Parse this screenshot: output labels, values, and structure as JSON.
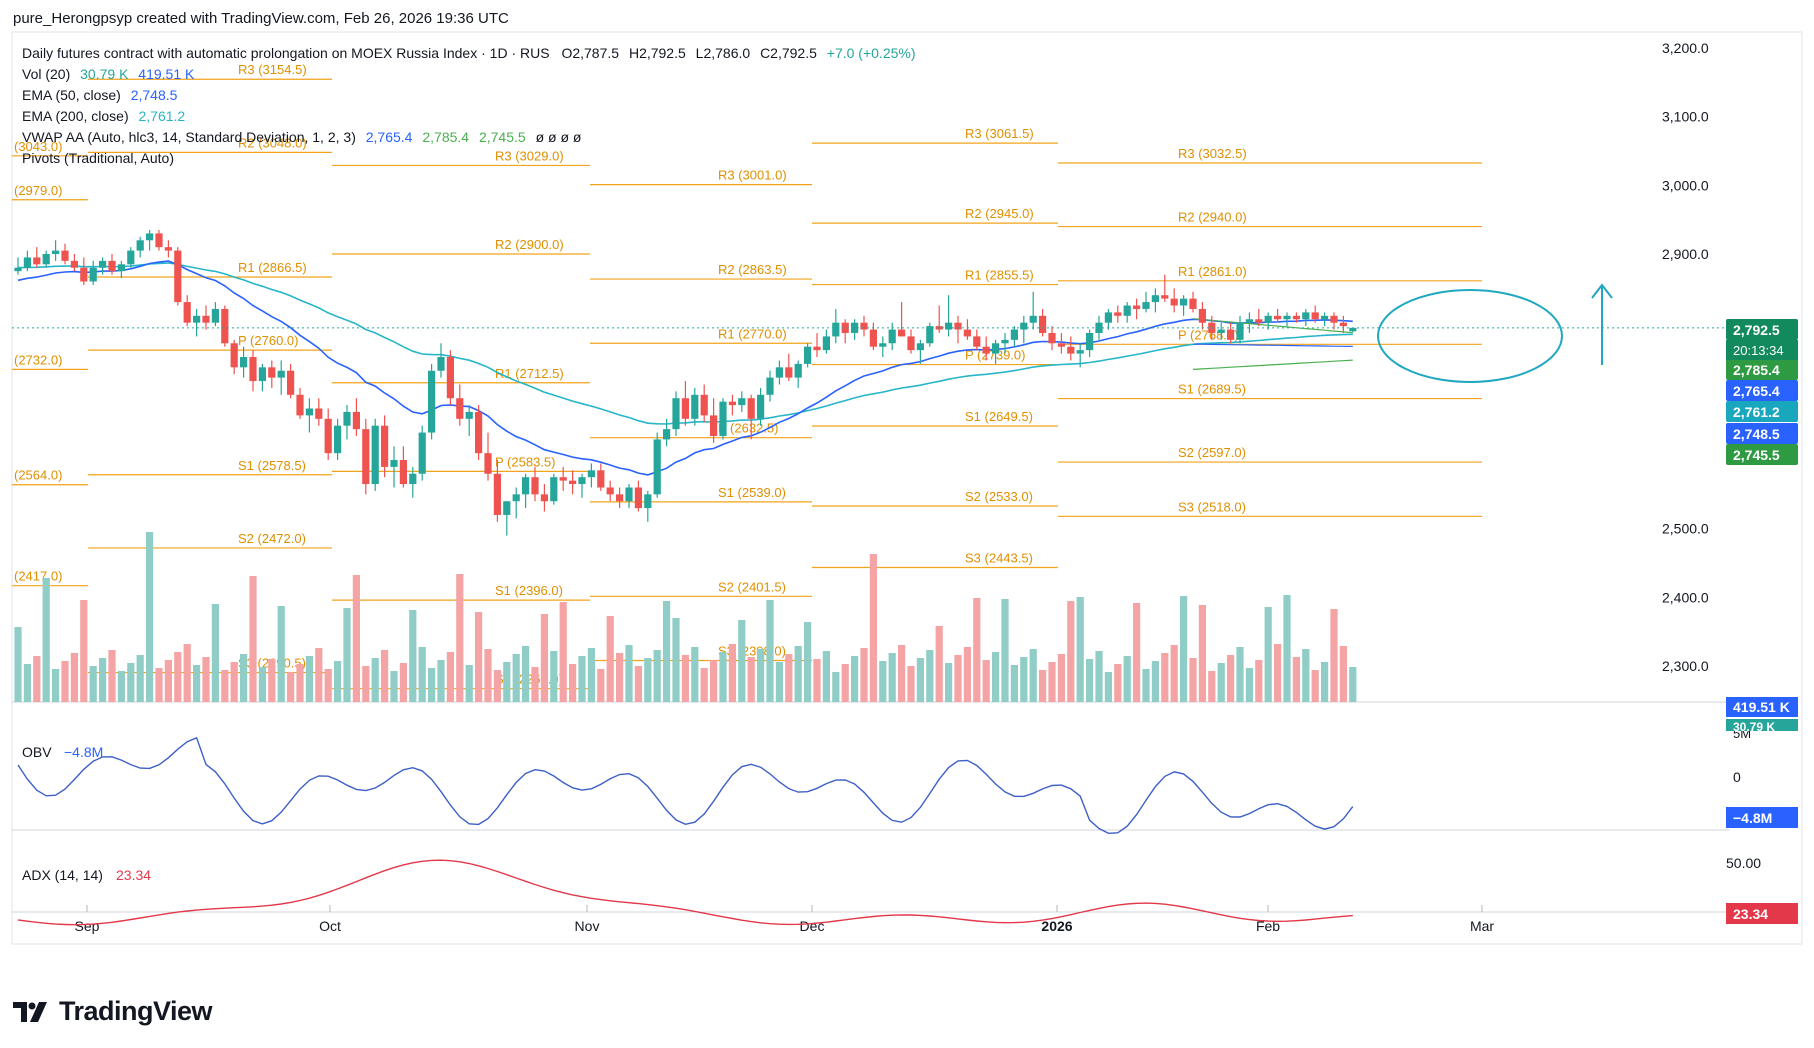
{
  "header": "pure_Herongpsyp created with TradingView.com, Feb 26, 2026 19:36 UTC",
  "brand": "TradingView",
  "legend": {
    "title": "Daily futures contract with automatic prolongation on MOEX Russia Index · 1D · RUS",
    "o": "O2,787.5",
    "h": "H2,792.5",
    "l": "L2,786.0",
    "c": "C2,792.5",
    "chg": "+7.0 (+0.25%)",
    "vol_label": "Vol (20)",
    "vol_v1": "30.79 K",
    "vol_v2": "419.51 K",
    "ema50_label": "EMA (50, close)",
    "ema50_v": "2,748.5",
    "ema200_label": "EMA (200, close)",
    "ema200_v": "2,761.2",
    "vwap_label": "VWAP AA (Auto, hlc3, 14, Standard Deviation, 1, 2, 3)",
    "vwap_v1": "2,765.4",
    "vwap_v2": "2,785.4",
    "vwap_v3": "2,745.5",
    "vwap_rest": "ø ø ø ø",
    "pivots_label": "Pivots (Traditional, Auto)"
  },
  "colors": {
    "up": "#26a69a",
    "down": "#ef5350",
    "vol_up": "#8fcdc6",
    "vol_down": "#f4a4a4",
    "ema50": "#2962ff",
    "ema200": "#27b6c8",
    "vwap": "#4caf50",
    "pivot": "#f2a31a",
    "obv": "#3d5fc7",
    "adx": "#e2384a",
    "annotation": "#1fa8c0"
  },
  "chart_data": {
    "type": "candlestick",
    "title": "Daily futures contract with automatic prolongation on MOEX Russia Index · 1D · RUS",
    "price_ticks": [
      "3,200.0",
      "3,100.0",
      "3,000.0",
      "2,900.0",
      "2,500.0",
      "2,400.0",
      "2,300.0"
    ],
    "x_ticks": [
      "Sep",
      "Oct",
      "Nov",
      "Dec",
      "2026",
      "Feb",
      "Mar"
    ],
    "last_price": "2,792.5",
    "countdown": "20:13:34",
    "candles": [
      [
        2875,
        2895,
        2870,
        2880
      ],
      [
        2880,
        2905,
        2875,
        2895
      ],
      [
        2895,
        2910,
        2880,
        2885
      ],
      [
        2885,
        2905,
        2880,
        2900
      ],
      [
        2900,
        2920,
        2890,
        2905
      ],
      [
        2905,
        2915,
        2885,
        2890
      ],
      [
        2890,
        2900,
        2875,
        2880
      ],
      [
        2880,
        2895,
        2855,
        2860
      ],
      [
        2860,
        2890,
        2855,
        2880
      ],
      [
        2880,
        2895,
        2870,
        2890
      ],
      [
        2890,
        2900,
        2870,
        2875
      ],
      [
        2875,
        2890,
        2865,
        2885
      ],
      [
        2885,
        2910,
        2880,
        2905
      ],
      [
        2905,
        2925,
        2895,
        2920
      ],
      [
        2920,
        2935,
        2905,
        2930
      ],
      [
        2930,
        2935,
        2905,
        2910
      ],
      [
        2910,
        2920,
        2895,
        2905
      ],
      [
        2905,
        2910,
        2825,
        2830
      ],
      [
        2830,
        2840,
        2795,
        2800
      ],
      [
        2800,
        2820,
        2780,
        2810
      ],
      [
        2810,
        2825,
        2790,
        2800
      ],
      [
        2800,
        2830,
        2795,
        2820
      ],
      [
        2820,
        2825,
        2765,
        2770
      ],
      [
        2770,
        2775,
        2725,
        2735
      ],
      [
        2735,
        2765,
        2720,
        2750
      ],
      [
        2750,
        2760,
        2700,
        2715
      ],
      [
        2715,
        2740,
        2700,
        2735
      ],
      [
        2735,
        2745,
        2705,
        2720
      ],
      [
        2720,
        2745,
        2695,
        2730
      ],
      [
        2730,
        2740,
        2690,
        2695
      ],
      [
        2695,
        2705,
        2660,
        2665
      ],
      [
        2665,
        2690,
        2640,
        2675
      ],
      [
        2675,
        2690,
        2650,
        2660
      ],
      [
        2660,
        2675,
        2600,
        2610
      ],
      [
        2610,
        2660,
        2600,
        2650
      ],
      [
        2650,
        2680,
        2630,
        2670
      ],
      [
        2670,
        2690,
        2635,
        2645
      ],
      [
        2645,
        2660,
        2550,
        2565
      ],
      [
        2565,
        2660,
        2555,
        2650
      ],
      [
        2650,
        2665,
        2575,
        2590
      ],
      [
        2590,
        2620,
        2560,
        2600
      ],
      [
        2600,
        2620,
        2560,
        2565
      ],
      [
        2565,
        2590,
        2545,
        2580
      ],
      [
        2580,
        2650,
        2570,
        2640
      ],
      [
        2640,
        2740,
        2630,
        2730
      ],
      [
        2730,
        2770,
        2720,
        2750
      ],
      [
        2750,
        2760,
        2680,
        2690
      ],
      [
        2690,
        2710,
        2650,
        2660
      ],
      [
        2660,
        2680,
        2635,
        2670
      ],
      [
        2670,
        2680,
        2600,
        2610
      ],
      [
        2610,
        2640,
        2570,
        2580
      ],
      [
        2580,
        2600,
        2510,
        2520
      ],
      [
        2520,
        2540,
        2490,
        2540
      ],
      [
        2540,
        2560,
        2515,
        2550
      ],
      [
        2550,
        2580,
        2530,
        2575
      ],
      [
        2575,
        2590,
        2540,
        2550
      ],
      [
        2550,
        2565,
        2525,
        2540
      ],
      [
        2540,
        2580,
        2535,
        2575
      ],
      [
        2575,
        2590,
        2555,
        2570
      ],
      [
        2570,
        2585,
        2550,
        2565
      ],
      [
        2565,
        2580,
        2545,
        2575
      ],
      [
        2575,
        2595,
        2560,
        2585
      ],
      [
        2585,
        2595,
        2555,
        2560
      ],
      [
        2560,
        2570,
        2540,
        2550
      ],
      [
        2550,
        2560,
        2530,
        2540
      ],
      [
        2540,
        2565,
        2530,
        2560
      ],
      [
        2560,
        2570,
        2525,
        2530
      ],
      [
        2530,
        2555,
        2510,
        2550
      ],
      [
        2550,
        2640,
        2545,
        2630
      ],
      [
        2630,
        2660,
        2620,
        2645
      ],
      [
        2645,
        2700,
        2635,
        2690
      ],
      [
        2690,
        2715,
        2650,
        2660
      ],
      [
        2660,
        2705,
        2650,
        2695
      ],
      [
        2695,
        2710,
        2655,
        2665
      ],
      [
        2665,
        2690,
        2625,
        2635
      ],
      [
        2635,
        2690,
        2630,
        2685
      ],
      [
        2685,
        2695,
        2665,
        2680
      ],
      [
        2680,
        2700,
        2670,
        2690
      ],
      [
        2690,
        2695,
        2630,
        2660
      ],
      [
        2660,
        2705,
        2650,
        2695
      ],
      [
        2695,
        2730,
        2685,
        2720
      ],
      [
        2720,
        2745,
        2710,
        2735
      ],
      [
        2735,
        2755,
        2715,
        2720
      ],
      [
        2720,
        2745,
        2705,
        2740
      ],
      [
        2740,
        2770,
        2735,
        2765
      ],
      [
        2765,
        2785,
        2750,
        2760
      ],
      [
        2760,
        2790,
        2755,
        2780
      ],
      [
        2780,
        2820,
        2770,
        2800
      ],
      [
        2800,
        2805,
        2770,
        2785
      ],
      [
        2785,
        2805,
        2775,
        2800
      ],
      [
        2800,
        2810,
        2780,
        2790
      ],
      [
        2790,
        2800,
        2760,
        2765
      ],
      [
        2765,
        2780,
        2750,
        2770
      ],
      [
        2770,
        2800,
        2760,
        2790
      ],
      [
        2790,
        2830,
        2780,
        2780
      ],
      [
        2780,
        2790,
        2755,
        2760
      ],
      [
        2760,
        2775,
        2740,
        2770
      ],
      [
        2770,
        2800,
        2765,
        2795
      ],
      [
        2795,
        2825,
        2785,
        2790
      ],
      [
        2790,
        2840,
        2780,
        2800
      ],
      [
        2800,
        2810,
        2770,
        2790
      ],
      [
        2790,
        2805,
        2775,
        2780
      ],
      [
        2780,
        2790,
        2760,
        2765
      ],
      [
        2765,
        2780,
        2745,
        2755
      ],
      [
        2755,
        2775,
        2740,
        2770
      ],
      [
        2770,
        2785,
        2755,
        2775
      ],
      [
        2775,
        2795,
        2765,
        2790
      ],
      [
        2790,
        2810,
        2770,
        2800
      ],
      [
        2800,
        2845,
        2790,
        2810
      ],
      [
        2810,
        2820,
        2780,
        2785
      ],
      [
        2785,
        2795,
        2760,
        2770
      ],
      [
        2770,
        2785,
        2755,
        2765
      ],
      [
        2765,
        2780,
        2745,
        2755
      ],
      [
        2755,
        2770,
        2735,
        2760
      ],
      [
        2760,
        2790,
        2750,
        2785
      ],
      [
        2785,
        2810,
        2775,
        2800
      ],
      [
        2800,
        2820,
        2790,
        2815
      ],
      [
        2815,
        2825,
        2800,
        2810
      ],
      [
        2810,
        2830,
        2800,
        2825
      ],
      [
        2825,
        2835,
        2805,
        2820
      ],
      [
        2820,
        2845,
        2815,
        2830
      ],
      [
        2830,
        2850,
        2815,
        2840
      ],
      [
        2840,
        2870,
        2830,
        2835
      ],
      [
        2835,
        2850,
        2815,
        2825
      ],
      [
        2825,
        2840,
        2810,
        2835
      ],
      [
        2835,
        2845,
        2815,
        2820
      ],
      [
        2820,
        2830,
        2790,
        2800
      ],
      [
        2800,
        2810,
        2775,
        2785
      ],
      [
        2785,
        2800,
        2775,
        2790
      ],
      [
        2790,
        2800,
        2770,
        2775
      ],
      [
        2775,
        2810,
        2770,
        2800
      ],
      [
        2800,
        2815,
        2785,
        2805
      ],
      [
        2805,
        2820,
        2795,
        2800
      ],
      [
        2800,
        2815,
        2790,
        2810
      ],
      [
        2810,
        2820,
        2800,
        2805
      ],
      [
        2805,
        2815,
        2795,
        2810
      ],
      [
        2810,
        2815,
        2800,
        2805
      ],
      [
        2805,
        2820,
        2795,
        2815
      ],
      [
        2815,
        2825,
        2800,
        2805
      ],
      [
        2805,
        2815,
        2795,
        2810
      ],
      [
        2810,
        2815,
        2790,
        2800
      ],
      [
        2800,
        2810,
        2785,
        2795
      ],
      [
        2787.5,
        2792.5,
        2786,
        2792.5
      ]
    ],
    "volume_ticks": [
      "5M",
      "419.51 K",
      "30.79 K"
    ],
    "pivot_labels": [
      "R3 (3154.5)",
      "R2 (3048.0)",
      "R1 (2866.5)",
      "P (2760.0)",
      "S1 (2578.5)",
      "S2 (2472.0)",
      "S3 (2290.5)",
      "R3 (3029.0)",
      "R2 (2900.0)",
      "R1 (2712.5)",
      "P (2583.5)",
      "S1 (2396.0)",
      "S2 (2267.0)",
      "R3 (3001.0)",
      "R2 (2863.5)",
      "R1 (2770.0)",
      "P (2632.5)",
      "S1 (2539.0)",
      "S2 (2401.5)",
      "S3 (2308.0)",
      "R3 (3061.5)",
      "R2 (2945.0)",
      "R1 (2855.5)",
      "P (2739.0)",
      "S1 (2649.5)",
      "S2 (2533.0)",
      "S3 (2443.5)",
      "R3 (3032.5)",
      "R2 (2940.0)",
      "R1 (2861.0)",
      "P (2768.5)",
      "S1 (2689.5)",
      "S2 (2597.0)",
      "S3 (2518.0)",
      "(2979.0)",
      "(2732.0)",
      "(2564.0)",
      "(2417.0)",
      "(3043.0)"
    ],
    "price_badges": [
      "2,792.5",
      "2,785.4",
      "2,765.4",
      "2,761.2",
      "2,748.5",
      "2,745.5"
    ],
    "obv": {
      "label": "OBV",
      "value": "−4.8M",
      "ticks": [
        "0"
      ]
    },
    "adx": {
      "label": "ADX (14, 14)",
      "value": "23.34",
      "ticks": [
        "50.00"
      ]
    }
  }
}
